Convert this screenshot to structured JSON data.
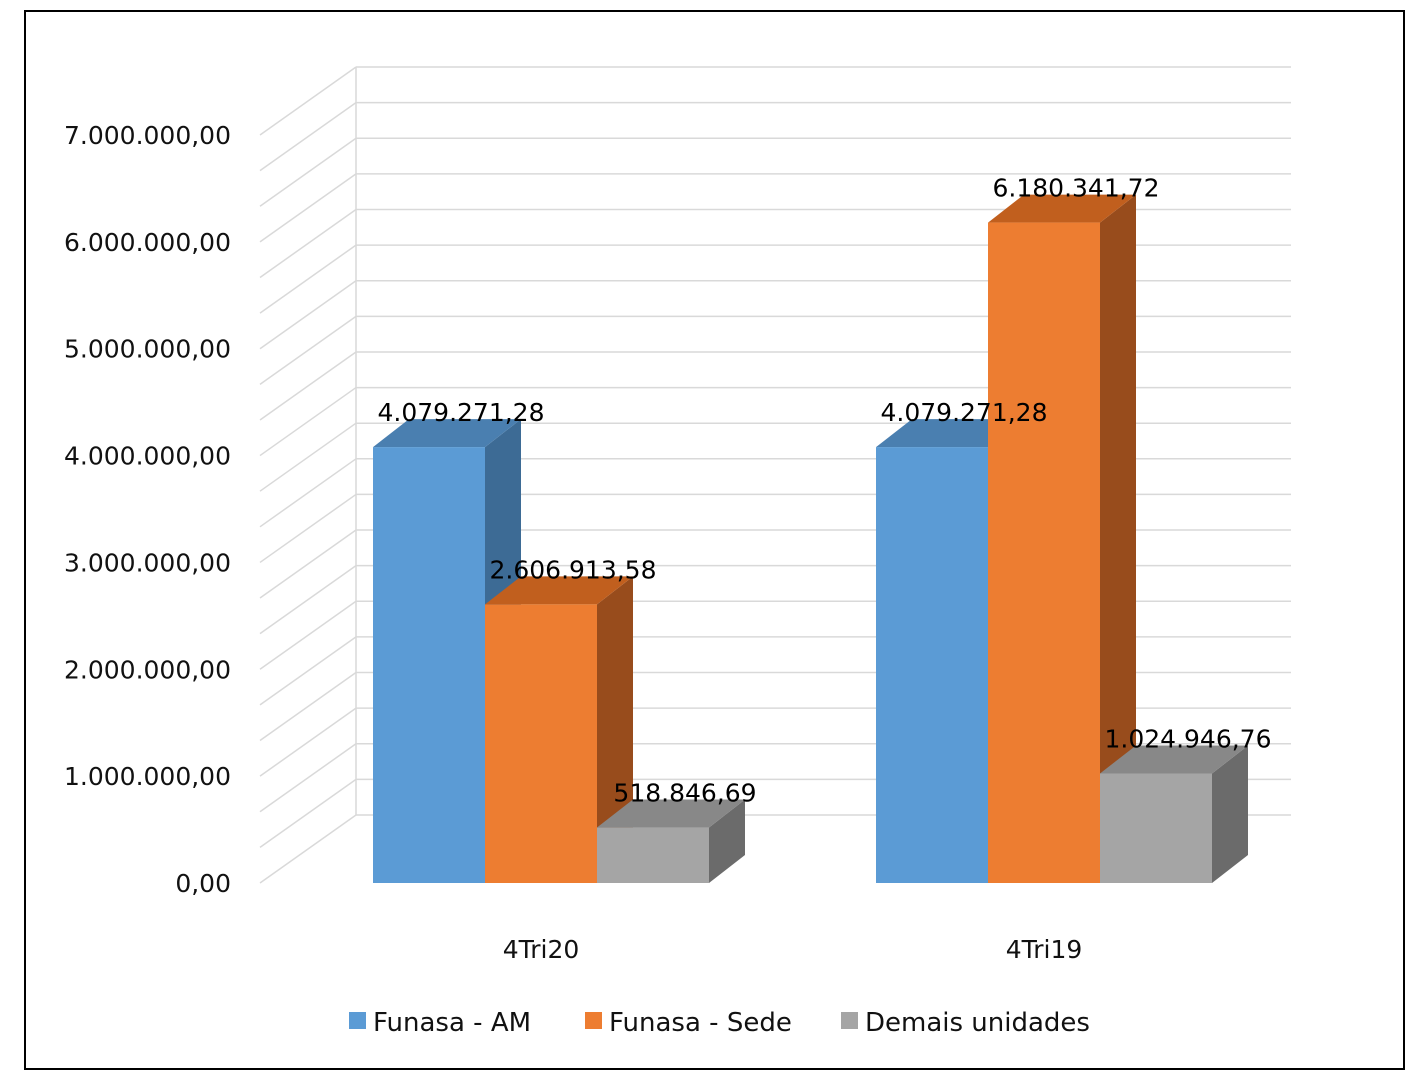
{
  "chart_data": {
    "type": "bar",
    "style": "3d-clustered-column",
    "categories": [
      "4Tri20",
      "4Tri19"
    ],
    "series": [
      {
        "name": "Funasa - AM",
        "values": [
          4079271.28,
          4079271.28
        ],
        "labels": [
          "4.079.271,28",
          "4.079.271,28"
        ],
        "color": "#5b9bd5",
        "side": "#3d6b95",
        "top": "#4a7fb0"
      },
      {
        "name": "Funasa - Sede",
        "values": [
          2606913.58,
          6180341.72
        ],
        "labels": [
          "2.606.913,58",
          "6.180.341,72"
        ],
        "color": "#ed7d31",
        "side": "#984c1c",
        "top": "#c15f1e"
      },
      {
        "name": "Demais unidades",
        "values": [
          518846.69,
          1024946.76
        ],
        "labels": [
          "518.846,69",
          "1.024.946,76"
        ],
        "color": "#a5a5a5",
        "side": "#6b6b6b",
        "top": "#888888"
      }
    ],
    "ylim": [
      0,
      7000000
    ],
    "yticks": [
      0,
      1000000,
      2000000,
      3000000,
      4000000,
      5000000,
      6000000,
      7000000
    ],
    "ytick_labels": [
      "0,00",
      "1.000.000,00",
      "2.000.000,00",
      "3.000.000,00",
      "4.000.000,00",
      "5.000.000,00",
      "6.000.000,00",
      "7.000.000,00"
    ],
    "grid": true,
    "legend_position": "bottom",
    "title": "",
    "xlabel": "",
    "ylabel": ""
  }
}
